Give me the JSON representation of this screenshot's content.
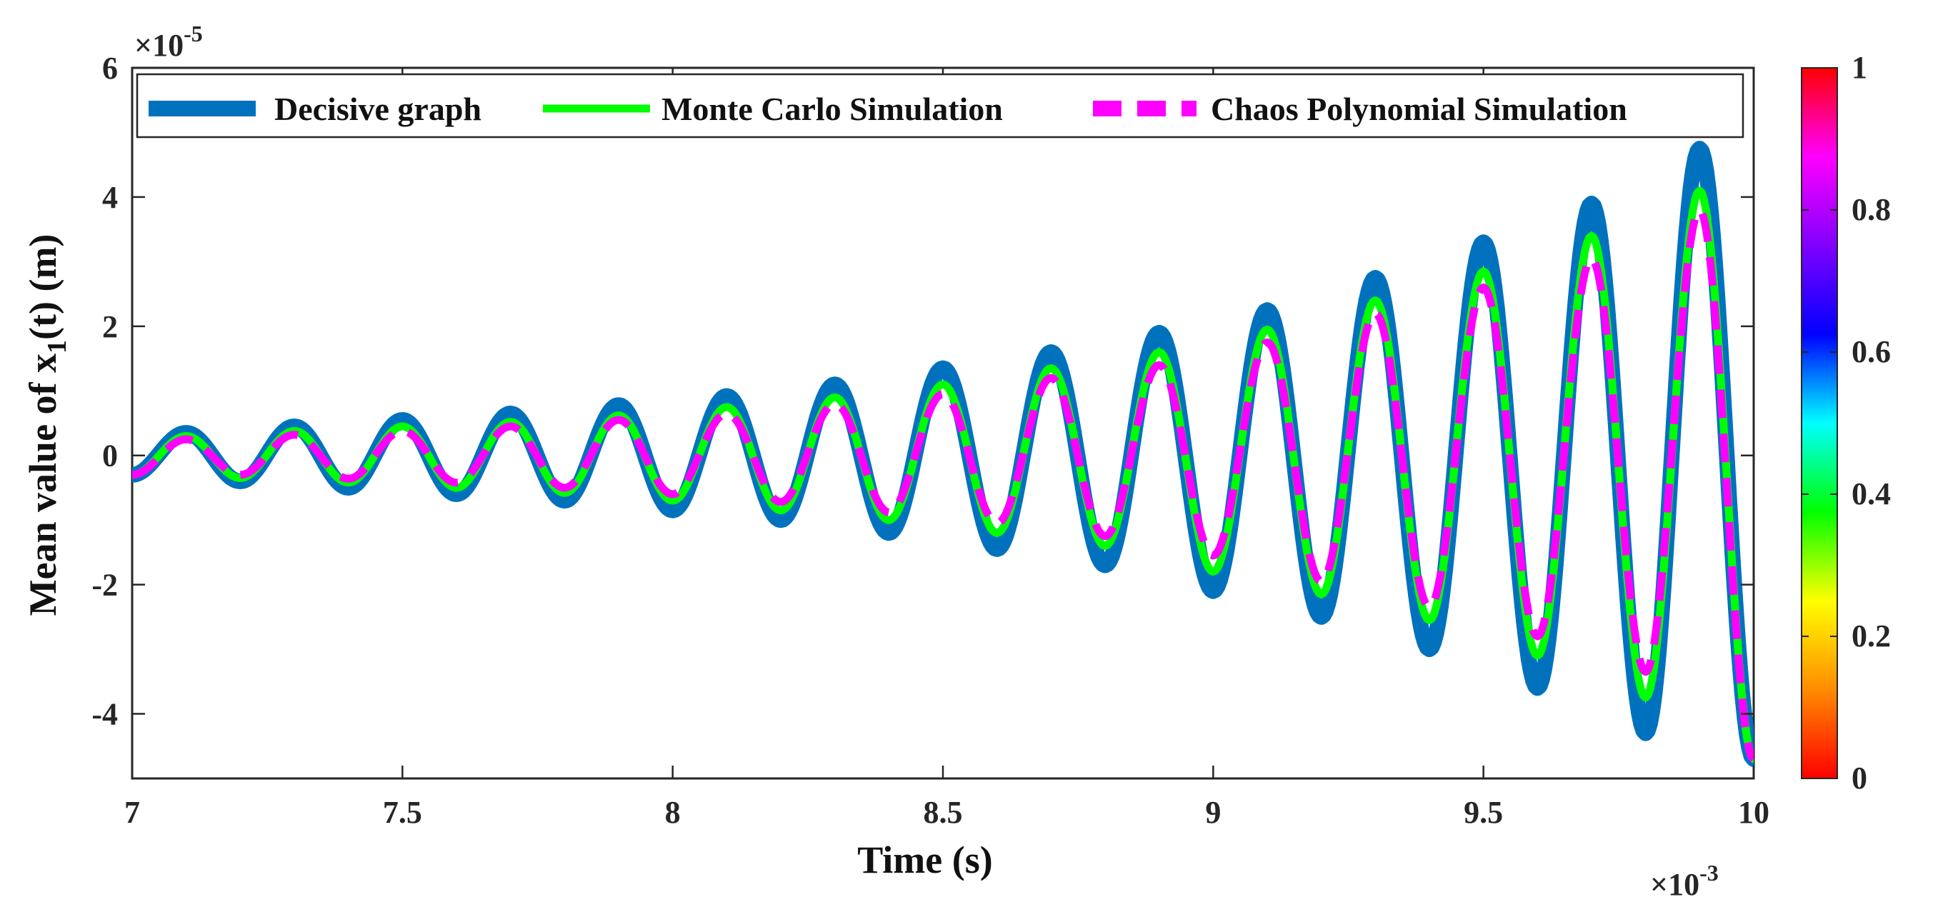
{
  "chart_data": {
    "type": "line",
    "xlabel": "Time (s)",
    "ylabel_main": "Mean value of  x",
    "ylabel_sub": "1",
    "ylabel_tail": "(t) (m)",
    "x_multiplier": "×10",
    "x_exponent": "-3",
    "y_multiplier": "×10",
    "y_exponent": "-5",
    "xlim": [
      7,
      10
    ],
    "ylim": [
      -5,
      6
    ],
    "xticks": [
      7,
      7.5,
      8,
      8.5,
      9,
      9.5,
      10
    ],
    "xtick_labels": [
      "7",
      "7.5",
      "8",
      "8.5",
      "9",
      "9.5",
      "10"
    ],
    "yticks": [
      -4,
      -2,
      0,
      2,
      4,
      6
    ],
    "ytick_labels": [
      "-4",
      "-2",
      "0",
      "2",
      "4",
      "6"
    ],
    "grid": false,
    "legend_position": "top",
    "peaks": [
      {
        "x": 7.1,
        "blue": 0.35,
        "green": 0.3,
        "magenta": 0.25
      },
      {
        "x": 7.2,
        "blue": -0.4,
        "green": -0.35,
        "magenta": -0.3
      },
      {
        "x": 7.3,
        "blue": 0.45,
        "green": 0.38,
        "magenta": 0.32
      },
      {
        "x": 7.4,
        "blue": -0.5,
        "green": -0.42,
        "magenta": -0.36
      },
      {
        "x": 7.5,
        "blue": 0.55,
        "green": 0.45,
        "magenta": 0.38
      },
      {
        "x": 7.6,
        "blue": -0.6,
        "green": -0.5,
        "magenta": -0.42
      },
      {
        "x": 7.7,
        "blue": 0.65,
        "green": 0.52,
        "magenta": 0.45
      },
      {
        "x": 7.8,
        "blue": -0.7,
        "green": -0.58,
        "magenta": -0.5
      },
      {
        "x": 7.9,
        "blue": 0.78,
        "green": 0.62,
        "magenta": 0.55
      },
      {
        "x": 8.0,
        "blue": -0.85,
        "green": -0.7,
        "magenta": -0.6
      },
      {
        "x": 8.1,
        "blue": 0.92,
        "green": 0.75,
        "magenta": 0.65
      },
      {
        "x": 8.2,
        "blue": -1.0,
        "green": -0.85,
        "magenta": -0.72
      },
      {
        "x": 8.3,
        "blue": 1.1,
        "green": 0.9,
        "magenta": 0.8
      },
      {
        "x": 8.4,
        "blue": -1.2,
        "green": -1.0,
        "magenta": -0.88
      },
      {
        "x": 8.5,
        "blue": 1.35,
        "green": 1.1,
        "magenta": 0.95
      },
      {
        "x": 8.6,
        "blue": -1.45,
        "green": -1.2,
        "magenta": -1.05
      },
      {
        "x": 8.7,
        "blue": 1.6,
        "green": 1.35,
        "magenta": 1.2
      },
      {
        "x": 8.8,
        "blue": -1.7,
        "green": -1.4,
        "magenta": -1.25
      },
      {
        "x": 8.9,
        "blue": 1.9,
        "green": 1.6,
        "magenta": 1.4
      },
      {
        "x": 9.0,
        "blue": -2.1,
        "green": -1.8,
        "magenta": -1.55
      },
      {
        "x": 9.1,
        "blue": 2.25,
        "green": 1.95,
        "magenta": 1.75
      },
      {
        "x": 9.2,
        "blue": -2.5,
        "green": -2.15,
        "magenta": -1.95
      },
      {
        "x": 9.3,
        "blue": 2.75,
        "green": 2.4,
        "magenta": 2.2
      },
      {
        "x": 9.4,
        "blue": -3.0,
        "green": -2.55,
        "magenta": -2.35
      },
      {
        "x": 9.5,
        "blue": 3.3,
        "green": 2.85,
        "magenta": 2.6
      },
      {
        "x": 9.6,
        "blue": -3.6,
        "green": -3.1,
        "magenta": -2.8
      },
      {
        "x": 9.7,
        "blue": 3.9,
        "green": 3.4,
        "magenta": 3.05
      },
      {
        "x": 9.8,
        "blue": -4.3,
        "green": -3.75,
        "magenta": -3.35
      },
      {
        "x": 9.9,
        "blue": 4.75,
        "green": 4.1,
        "magenta": 3.8
      }
    ],
    "series_start_y": -0.3,
    "series_end_y": -4.7,
    "series": [
      {
        "name": "Decisive graph",
        "color": "#0072BD",
        "style": "solid-thick",
        "value_key": "blue"
      },
      {
        "name": "Monte Carlo Simulation",
        "color": "#00FF00",
        "style": "solid",
        "value_key": "green"
      },
      {
        "name": "Chaos Polynomial Simulation",
        "color": "#FF00FF",
        "style": "dashed",
        "value_key": "magenta"
      }
    ],
    "colorbar": {
      "min": 0,
      "max": 1,
      "ticks": [
        0,
        0.2,
        0.4,
        0.6,
        0.8,
        1
      ],
      "tick_labels": [
        "0",
        "0.2",
        "0.4",
        "0.6",
        "0.8",
        "1"
      ],
      "colors": [
        "#ff0000",
        "#ff8c00",
        "#ffff00",
        "#00ff00",
        "#00ffff",
        "#0000ff",
        "#8000ff",
        "#ff00ff",
        "#ff0000"
      ]
    }
  }
}
